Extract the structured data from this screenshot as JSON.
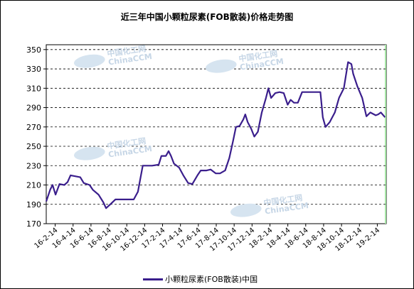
{
  "chart_data": {
    "type": "line",
    "title": "近三年中国小颗粒尿素(FOB散装)价格走势图",
    "ylim": [
      170,
      355
    ],
    "yticks": [
      170,
      190,
      210,
      230,
      250,
      270,
      290,
      310,
      330,
      350
    ],
    "xtick_labels": [
      "16-2-14",
      "16-4-14",
      "16-6-14",
      "16-8-14",
      "16-10-14",
      "16-12-14",
      "17-2-14",
      "17-4-14",
      "17-6-14",
      "17-8-14",
      "17-10-14",
      "17-12-14",
      "18-2-14",
      "18-4-14",
      "18-6-14",
      "18-8-14",
      "18-10-14",
      "18-12-14",
      "19-2-14"
    ],
    "grid": true,
    "legend_position": "bottom",
    "series": [
      {
        "name": "小颗粒尿素(FOB散装)中国",
        "color": "#3a1e8c",
        "points": [
          [
            "2016-01-28",
            193
          ],
          [
            "2016-02-10",
            205
          ],
          [
            "2016-02-18",
            210
          ],
          [
            "2016-02-28",
            200
          ],
          [
            "2016-03-12",
            211
          ],
          [
            "2016-03-28",
            210
          ],
          [
            "2016-04-08",
            213
          ],
          [
            "2016-04-18",
            220
          ],
          [
            "2016-05-20",
            218
          ],
          [
            "2016-06-01",
            212
          ],
          [
            "2016-06-20",
            210
          ],
          [
            "2016-07-01",
            205
          ],
          [
            "2016-07-20",
            200
          ],
          [
            "2016-08-05",
            192
          ],
          [
            "2016-08-14",
            186
          ],
          [
            "2016-08-28",
            190
          ],
          [
            "2016-09-14",
            195
          ],
          [
            "2016-10-14",
            195
          ],
          [
            "2016-11-14",
            195
          ],
          [
            "2016-11-28",
            203
          ],
          [
            "2016-12-05",
            215
          ],
          [
            "2016-12-14",
            230
          ],
          [
            "2017-01-14",
            230
          ],
          [
            "2017-02-05",
            231
          ],
          [
            "2017-02-14",
            240
          ],
          [
            "2017-03-01",
            240
          ],
          [
            "2017-03-10",
            245
          ],
          [
            "2017-03-18",
            240
          ],
          [
            "2017-03-28",
            232
          ],
          [
            "2017-04-14",
            228
          ],
          [
            "2017-04-28",
            220
          ],
          [
            "2017-05-14",
            212
          ],
          [
            "2017-05-28",
            211
          ],
          [
            "2017-06-14",
            220
          ],
          [
            "2017-06-25",
            225
          ],
          [
            "2017-07-14",
            225
          ],
          [
            "2017-07-28",
            226
          ],
          [
            "2017-08-14",
            222
          ],
          [
            "2017-08-28",
            222
          ],
          [
            "2017-09-14",
            225
          ],
          [
            "2017-09-28",
            238
          ],
          [
            "2017-10-10",
            255
          ],
          [
            "2017-10-20",
            270
          ],
          [
            "2017-11-01",
            271
          ],
          [
            "2017-11-14",
            278
          ],
          [
            "2017-11-20",
            283
          ],
          [
            "2017-11-28",
            275
          ],
          [
            "2017-12-10",
            268
          ],
          [
            "2017-12-20",
            260
          ],
          [
            "2018-01-01",
            265
          ],
          [
            "2018-01-14",
            285
          ],
          [
            "2018-01-28",
            300
          ],
          [
            "2018-02-05",
            310
          ],
          [
            "2018-02-14",
            300
          ],
          [
            "2018-02-28",
            305
          ],
          [
            "2018-03-14",
            306
          ],
          [
            "2018-03-28",
            305
          ],
          [
            "2018-04-10",
            293
          ],
          [
            "2018-04-20",
            298
          ],
          [
            "2018-05-01",
            295
          ],
          [
            "2018-05-14",
            295
          ],
          [
            "2018-05-28",
            306
          ],
          [
            "2018-06-14",
            306
          ],
          [
            "2018-07-14",
            306
          ],
          [
            "2018-07-28",
            306
          ],
          [
            "2018-08-05",
            280
          ],
          [
            "2018-08-14",
            270
          ],
          [
            "2018-08-28",
            275
          ],
          [
            "2018-09-14",
            285
          ],
          [
            "2018-09-28",
            300
          ],
          [
            "2018-10-14",
            310
          ],
          [
            "2018-10-28",
            337
          ],
          [
            "2018-11-08",
            335
          ],
          [
            "2018-11-14",
            325
          ],
          [
            "2018-11-28",
            312
          ],
          [
            "2018-12-14",
            300
          ],
          [
            "2018-12-28",
            281
          ],
          [
            "2019-01-10",
            285
          ],
          [
            "2019-01-28",
            282
          ],
          [
            "2019-02-05",
            283
          ],
          [
            "2019-02-14",
            285
          ],
          [
            "2019-02-28",
            280
          ]
        ]
      }
    ]
  },
  "legend": {
    "label": "小颗粒尿素(FOB散装)中国"
  },
  "watermark": {
    "cn": "中国化工网",
    "en": "ChinaCCM"
  }
}
